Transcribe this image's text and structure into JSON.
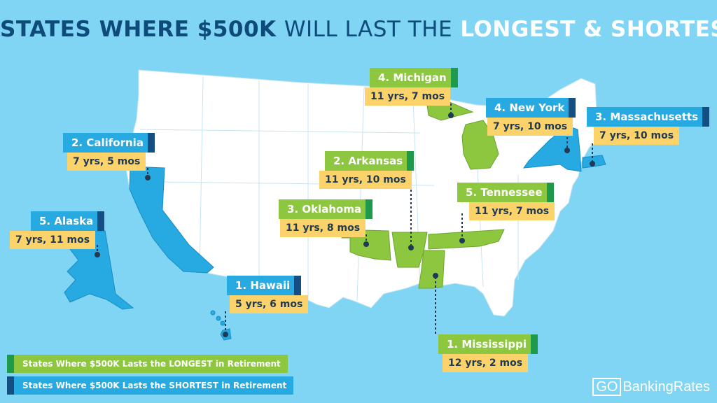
{
  "title": {
    "part1": "STATES WHERE $500K",
    "part2": "WILL LAST THE",
    "part3": "LONGEST & SHORTEST"
  },
  "colors": {
    "longest": "#8dc63f",
    "shortest": "#27a9e1",
    "land": "#ffffff",
    "water": "#7fd5f3",
    "value_bg": "#fcd36a"
  },
  "states": {
    "michigan": {
      "name": "4. Michigan",
      "value": "11 yrs, 7 mos",
      "group": "longest"
    },
    "new_york": {
      "name": "4. New York",
      "value": "7 yrs, 10 mos",
      "group": "shortest"
    },
    "massachusetts": {
      "name": "3. Massachusetts",
      "value": "7 yrs, 10 mos",
      "group": "shortest"
    },
    "california": {
      "name": "2. California",
      "value": "7 yrs, 5 mos",
      "group": "shortest"
    },
    "arkansas": {
      "name": "2. Arkansas",
      "value": "11 yrs, 10 mos",
      "group": "longest"
    },
    "tennessee": {
      "name": "5. Tennessee",
      "value": "11 yrs, 7 mos",
      "group": "longest"
    },
    "oklahoma": {
      "name": "3. Oklahoma",
      "value": "11 yrs, 8 mos",
      "group": "longest"
    },
    "alaska": {
      "name": "5. Alaska",
      "value": "7 yrs, 11 mos",
      "group": "shortest"
    },
    "hawaii": {
      "name": "1. Hawaii",
      "value": "5 yrs, 6 mos",
      "group": "shortest"
    },
    "mississippi": {
      "name": "1. Mississippi",
      "value": "12 yrs, 2 mos",
      "group": "longest"
    }
  },
  "legend": {
    "longest": "States Where $500K Lasts the LONGEST in Retirement",
    "shortest": "States Where $500K Lasts the SHORTEST in Retirement"
  },
  "brand": {
    "go": "GO",
    "rest": "BankingRates"
  }
}
